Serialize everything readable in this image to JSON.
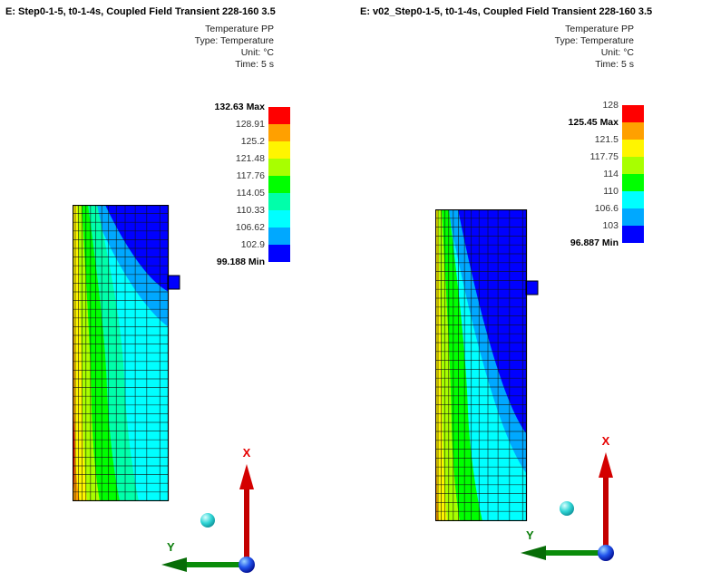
{
  "panels": [
    {
      "title": "E: Step0-1-5, t0-1-4s, Coupled Field Transient 228-160 3.5",
      "info_lines": [
        "Temperature PP",
        "Type: Temperature",
        "Unit: °C",
        "Time: 5 s"
      ],
      "legend": {
        "entries": [
          {
            "label": "132.63 Max",
            "bold": true
          },
          {
            "label": "128.91",
            "bold": false
          },
          {
            "label": "125.2",
            "bold": false
          },
          {
            "label": "121.48",
            "bold": false
          },
          {
            "label": "117.76",
            "bold": false
          },
          {
            "label": "114.05",
            "bold": false
          },
          {
            "label": "110.33",
            "bold": false
          },
          {
            "label": "106.62",
            "bold": false
          },
          {
            "label": "102.9",
            "bold": false
          },
          {
            "label": "99.188 Min",
            "bold": true
          }
        ],
        "band_colors": [
          "#ff0000",
          "#ffa000",
          "#fff500",
          "#a8ff00",
          "#00ff00",
          "#00ffaa",
          "#00ffff",
          "#00a8ff",
          "#0000ff"
        ]
      },
      "triad": {
        "x_label": "X",
        "y_label": "Y",
        "x_color": "#e60000",
        "y_color": "#0a7d0a",
        "origin_color": "#1a3fd6",
        "aux_sphere_color": "#2fd5d5"
      }
    },
    {
      "title": "E: v02_Step0-1-5, t0-1-4s, Coupled Field Transient 228-160 3.5",
      "info_lines": [
        "Temperature PP",
        "Type: Temperature",
        "Unit: °C",
        "Time: 5 s"
      ],
      "legend": {
        "entries": [
          {
            "label": "128",
            "bold": false
          },
          {
            "label": "125.45 Max",
            "bold": true
          },
          {
            "label": "121.5",
            "bold": false
          },
          {
            "label": "117.75",
            "bold": false
          },
          {
            "label": "114",
            "bold": false
          },
          {
            "label": "110",
            "bold": false
          },
          {
            "label": "106.6",
            "bold": false
          },
          {
            "label": "103",
            "bold": false
          },
          {
            "label": "96.887 Min",
            "bold": true
          }
        ],
        "band_colors": [
          "#ff0000",
          "#ffa000",
          "#fff500",
          "#a8ff00",
          "#00ff00",
          "#00ffff",
          "#00a8ff",
          "#0000ff"
        ]
      },
      "triad": {
        "x_label": "X",
        "y_label": "Y",
        "x_color": "#e60000",
        "y_color": "#0a7d0a",
        "origin_color": "#1a3fd6",
        "aux_sphere_color": "#2fd5d5"
      }
    }
  ],
  "chart_data": [
    {
      "type": "heatmap",
      "title": "E: Step0-1-5, t0-1-4s, Coupled Field Transient 228-160 3.5",
      "quantity": "Temperature PP",
      "result_type": "Temperature",
      "unit": "°C",
      "time": "5 s",
      "max": 132.63,
      "min": 99.188,
      "contour_levels": [
        132.63,
        128.91,
        125.2,
        121.48,
        117.76,
        114.05,
        110.33,
        106.62,
        102.9,
        99.188
      ],
      "legend_position": "upper-right"
    },
    {
      "type": "heatmap",
      "title": "E: v02_Step0-1-5, t0-1-4s, Coupled Field Transient 228-160 3.5",
      "quantity": "Temperature PP",
      "result_type": "Temperature",
      "unit": "°C",
      "time": "5 s",
      "max": 125.45,
      "min": 96.887,
      "contour_levels": [
        128,
        125.45,
        121.5,
        117.75,
        114,
        110,
        106.6,
        103,
        96.887
      ],
      "legend_position": "upper-right"
    }
  ]
}
